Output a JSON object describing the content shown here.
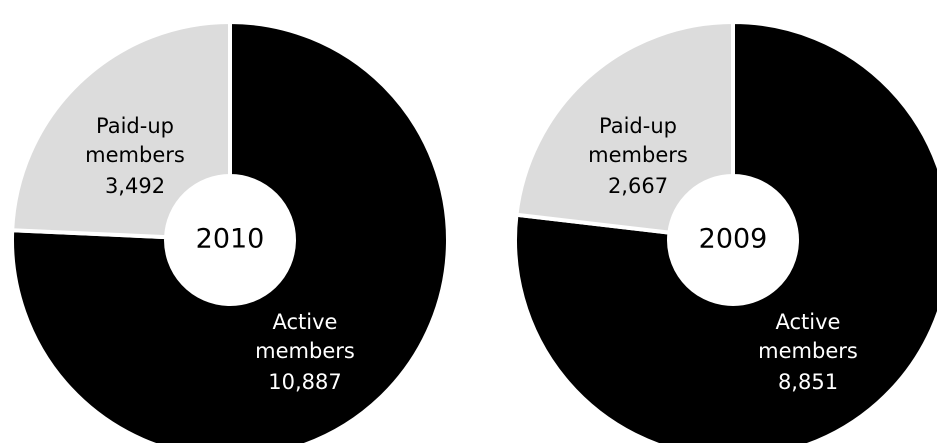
{
  "chart_data": [
    {
      "type": "donut",
      "title": "2010",
      "categories": [
        "Paid-up members",
        "Active members"
      ],
      "values": [
        3492,
        10887
      ],
      "value_labels": [
        "3,492",
        "10,887"
      ],
      "colors": [
        "#dcdcdc",
        "#000000"
      ],
      "label_colors": [
        "#000000",
        "#ffffff"
      ]
    },
    {
      "type": "donut",
      "title": "2009",
      "categories": [
        "Paid-up members",
        "Active members"
      ],
      "values": [
        2667,
        8851
      ],
      "value_labels": [
        "2,667",
        "8,851"
      ],
      "colors": [
        "#dcdcdc",
        "#000000"
      ],
      "label_colors": [
        "#000000",
        "#ffffff"
      ]
    }
  ]
}
